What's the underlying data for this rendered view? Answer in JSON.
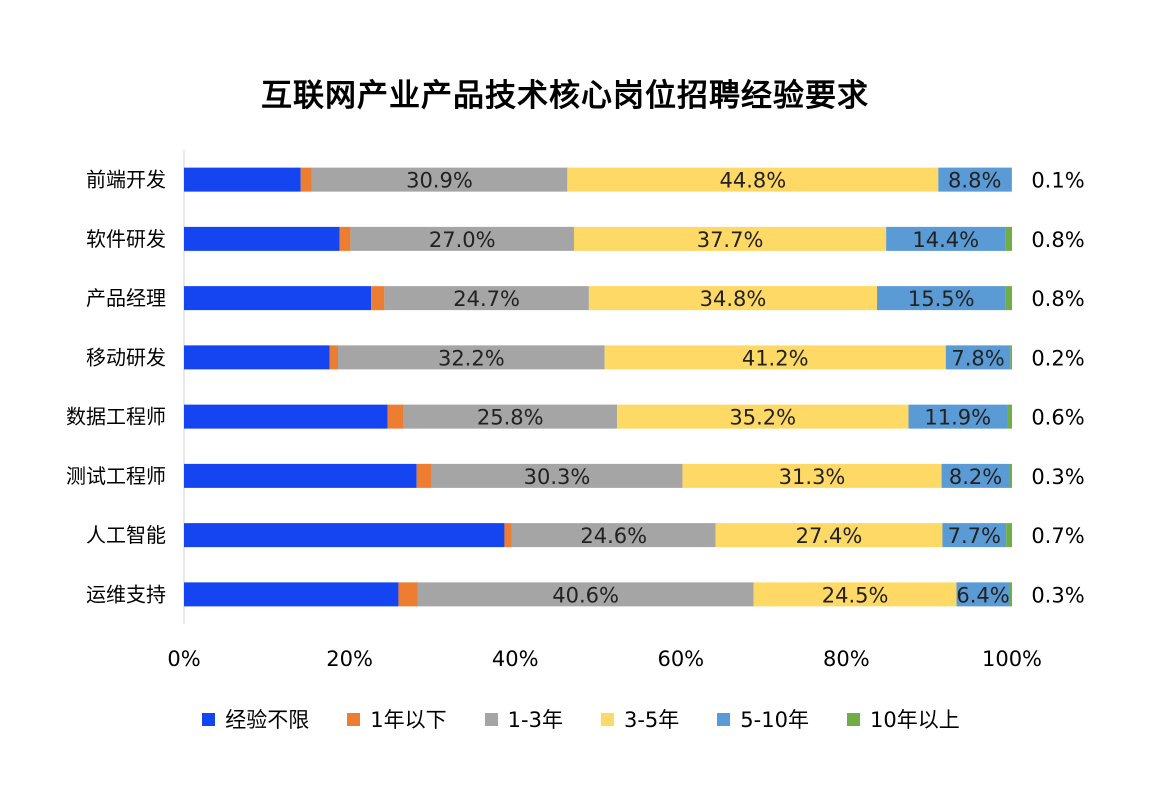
{
  "chart_data": {
    "type": "bar",
    "orientation": "horizontal",
    "stacked": "percent",
    "title": "互联网产业产品技术核心岗位招聘经验要求",
    "xlabel": "",
    "ylabel": "",
    "xlim": [
      0,
      100
    ],
    "x_ticks": [
      "0%",
      "20%",
      "40%",
      "60%",
      "80%",
      "100%"
    ],
    "grid": false,
    "legend_position": "bottom",
    "categories": [
      "前端开发",
      "软件研发",
      "产品经理",
      "移动研发",
      "数据工程师",
      "测试工程师",
      "人工智能",
      "运维支持"
    ],
    "series": [
      {
        "name": "经验不限",
        "color": "#1545F0",
        "values": [
          14.1,
          18.8,
          22.6,
          17.6,
          24.6,
          28.1,
          38.7,
          25.9
        ],
        "labels": [
          "",
          "",
          "",
          "",
          "",
          "",
          "",
          ""
        ]
      },
      {
        "name": "1年以下",
        "color": "#ED7D31",
        "values": [
          1.3,
          1.3,
          1.6,
          1.0,
          1.9,
          1.8,
          0.9,
          2.3
        ],
        "labels": [
          "",
          "",
          "",
          "",
          "",
          "",
          "",
          ""
        ]
      },
      {
        "name": "1-3年",
        "color": "#A5A5A5",
        "values": [
          30.9,
          27.0,
          24.7,
          32.2,
          25.8,
          30.3,
          24.6,
          40.6
        ],
        "labels": [
          "30.9%",
          "27.0%",
          "24.7%",
          "32.2%",
          "25.8%",
          "30.3%",
          "24.6%",
          "40.6%"
        ]
      },
      {
        "name": "3-5年",
        "color": "#FFD966",
        "values": [
          44.8,
          37.7,
          34.8,
          41.2,
          35.2,
          31.3,
          27.4,
          24.5
        ],
        "labels": [
          "44.8%",
          "37.7%",
          "34.8%",
          "41.2%",
          "35.2%",
          "31.3%",
          "27.4%",
          "24.5%"
        ]
      },
      {
        "name": "5-10年",
        "color": "#5B9BD5",
        "values": [
          8.8,
          14.4,
          15.5,
          7.8,
          11.9,
          8.2,
          7.7,
          6.4
        ],
        "labels": [
          "8.8%",
          "14.4%",
          "15.5%",
          "7.8%",
          "11.9%",
          "8.2%",
          "7.7%",
          "6.4%"
        ]
      },
      {
        "name": "10年以上",
        "color": "#70AD47",
        "values": [
          0.1,
          0.8,
          0.8,
          0.2,
          0.6,
          0.3,
          0.7,
          0.3
        ],
        "labels": [
          "0.1%",
          "0.8%",
          "0.8%",
          "0.2%",
          "0.6%",
          "0.3%",
          "0.7%",
          "0.3%"
        ]
      }
    ]
  }
}
